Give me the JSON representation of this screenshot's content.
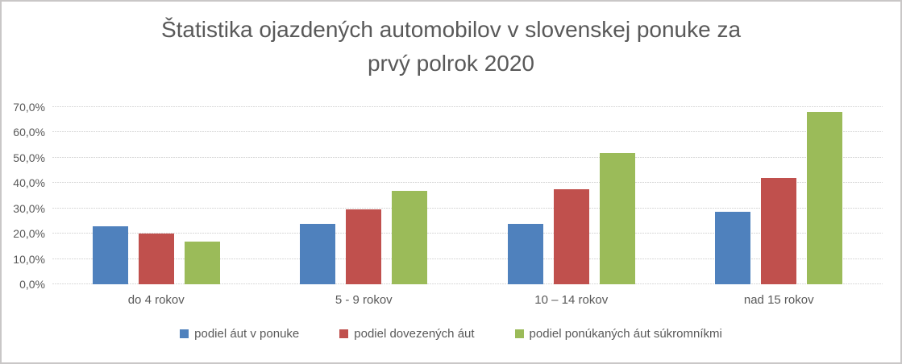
{
  "chart_data": {
    "type": "bar",
    "title": "Štatistika ojazdených automobilov v slovenskej ponuke za prvý polrok 2020",
    "title_lines": [
      "Štatistika ojazdených automobilov v slovenskej ponuke za",
      "prvý polrok 2020"
    ],
    "categories": [
      "do 4 rokov",
      "5 - 9 rokov",
      "10 – 14 rokov",
      "nad 15 rokov"
    ],
    "series": [
      {
        "name": "podiel áut v ponuke",
        "color": "#4F81BD",
        "values": [
          23,
          24,
          24,
          28.7
        ]
      },
      {
        "name": "podiel dovezených áut",
        "color": "#C0504D",
        "values": [
          20,
          29.7,
          37.5,
          42
        ]
      },
      {
        "name": "podiel ponúkaných áut súkromníkmi",
        "color": "#9BBB59",
        "values": [
          17,
          36.8,
          52,
          68
        ]
      }
    ],
    "xlabel": "",
    "ylabel": "",
    "ylim": [
      0,
      70
    ],
    "yticks": [
      {
        "value": 0,
        "label": "0,0%"
      },
      {
        "value": 10,
        "label": "10,0%"
      },
      {
        "value": 20,
        "label": "20,0%"
      },
      {
        "value": 30,
        "label": "30,0%"
      },
      {
        "value": 40,
        "label": "40,0%"
      },
      {
        "value": 50,
        "label": "50,0%"
      },
      {
        "value": 60,
        "label": "60,0%"
      },
      {
        "value": 70,
        "label": "70,0%"
      }
    ],
    "grid": "horizontal",
    "legend_position": "bottom",
    "colors": {
      "text": "#595959",
      "gridline": "#D9D9D9",
      "border": "#C9C7C7",
      "background": "#FFFFFF"
    }
  }
}
